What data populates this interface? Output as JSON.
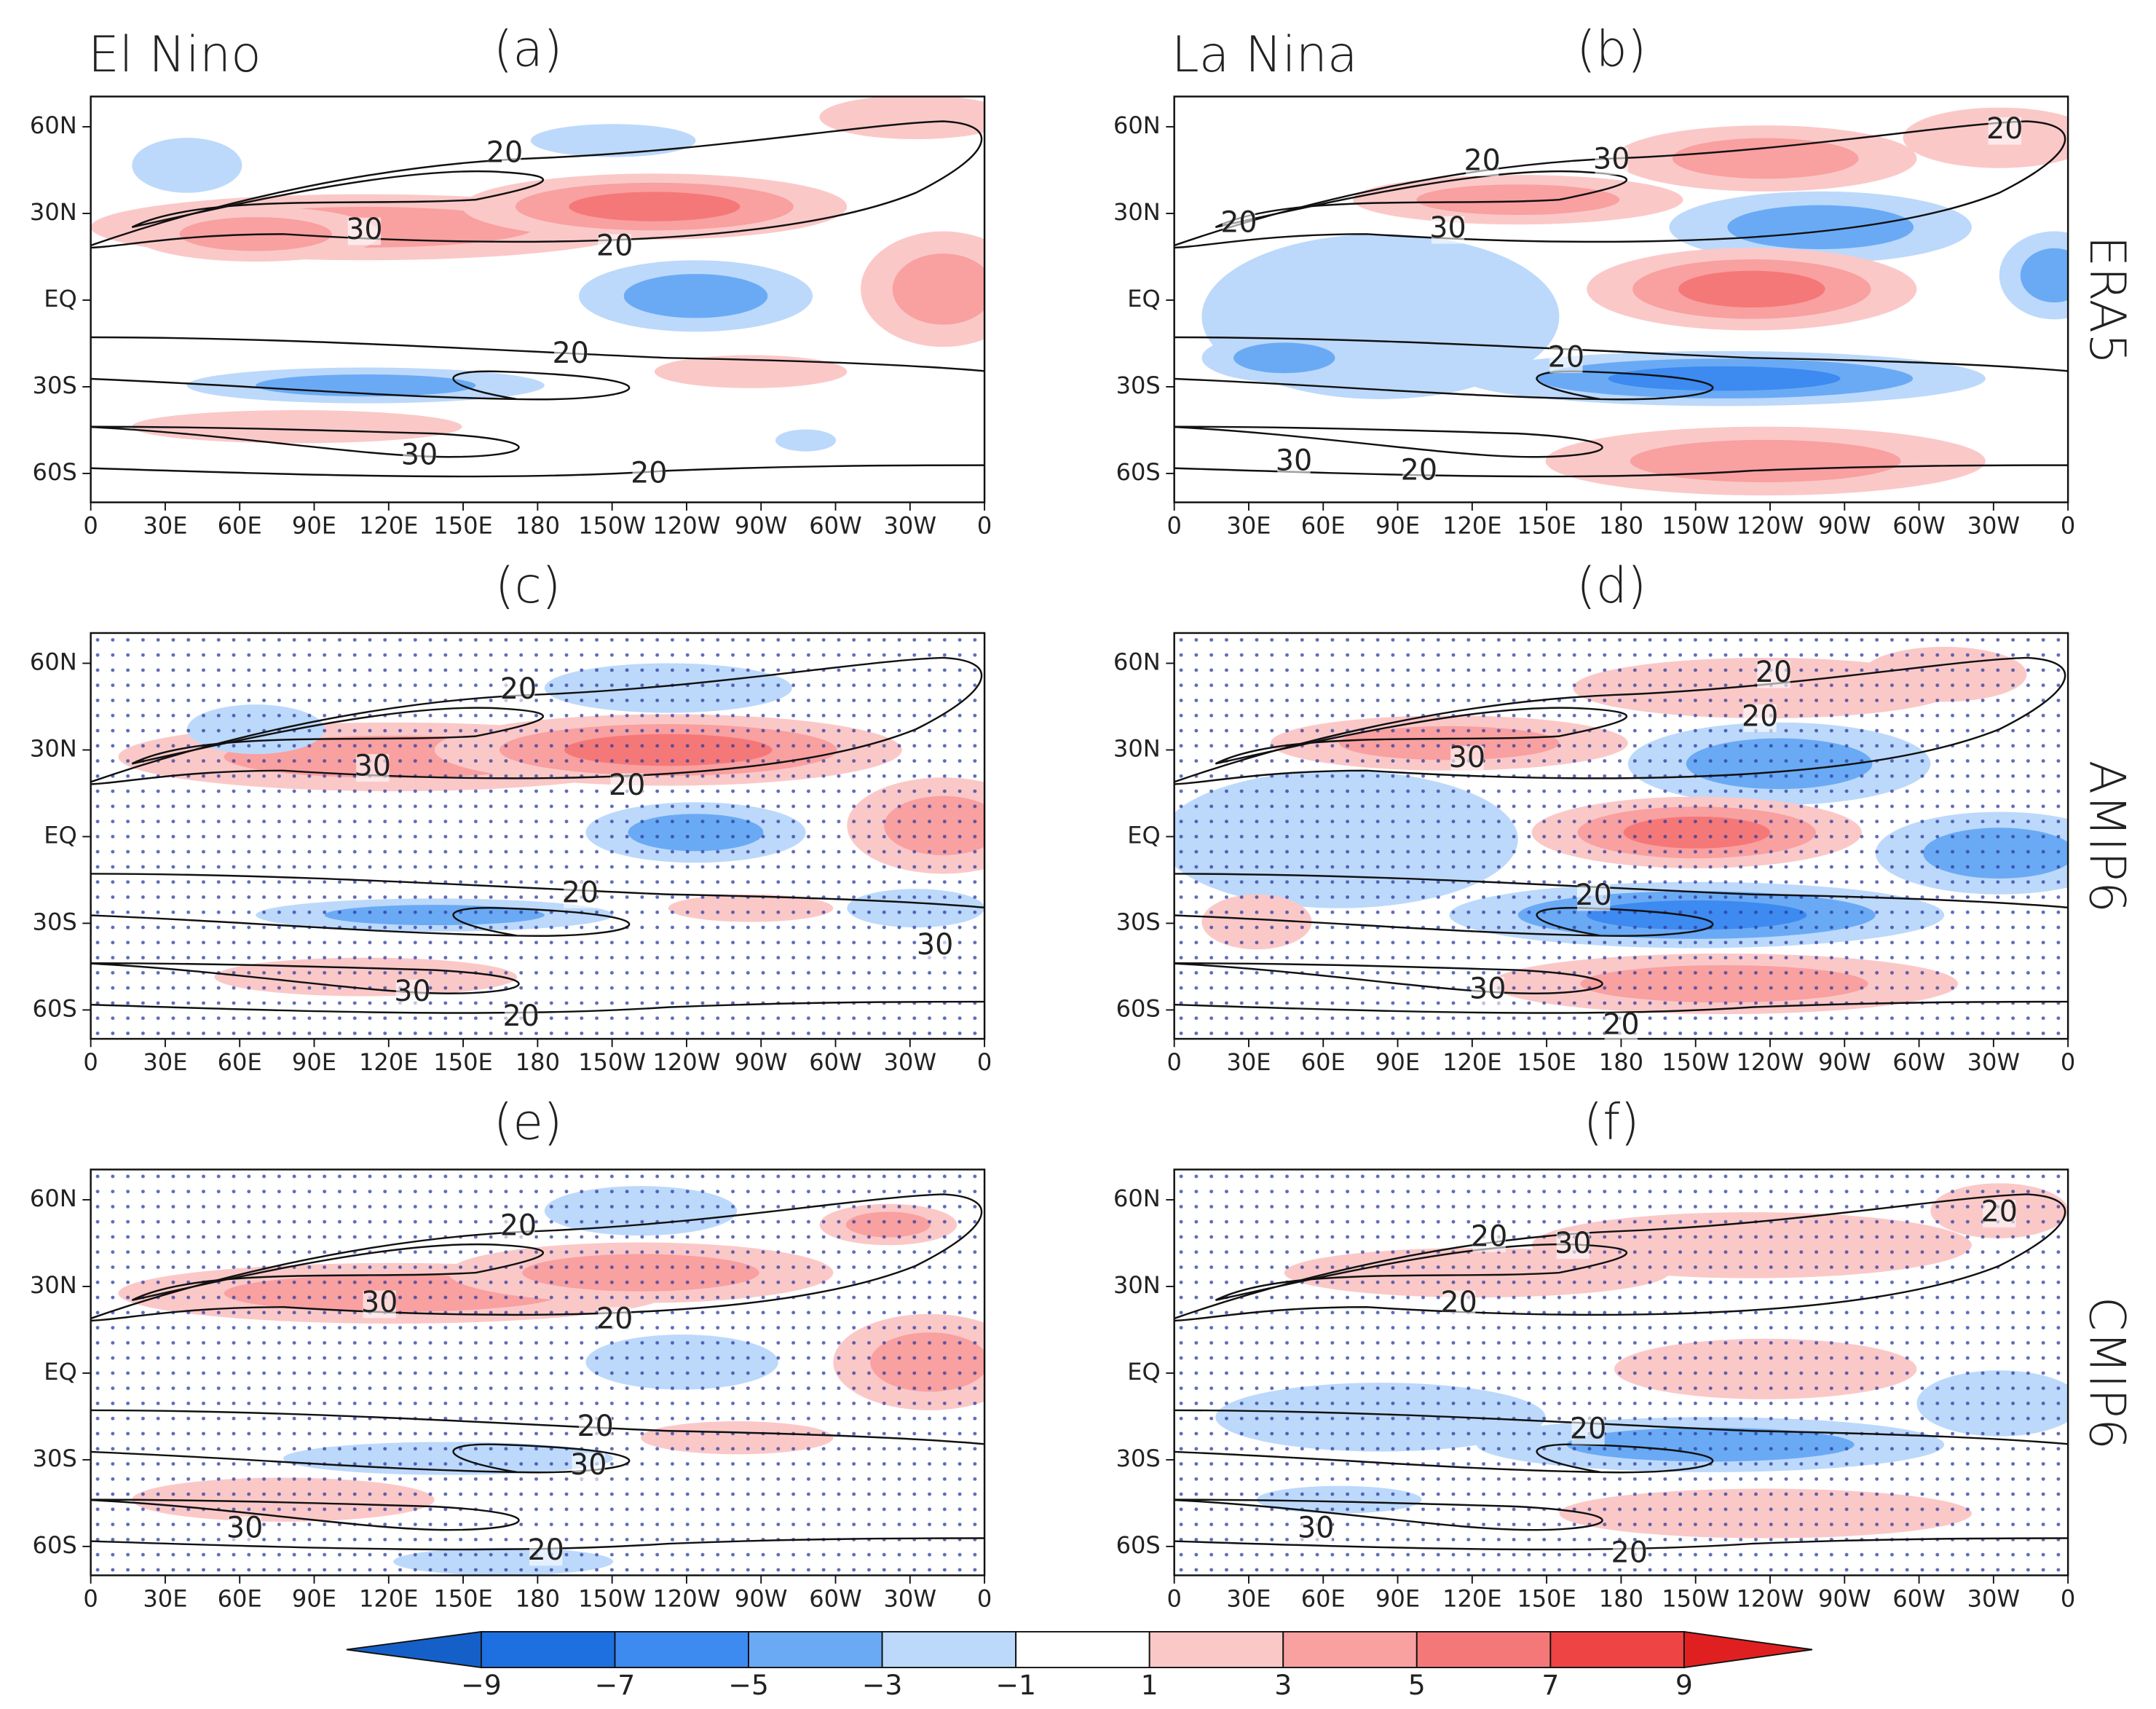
{
  "columns": [
    "El Nino",
    "La Nina"
  ],
  "rows": [
    "ERA5",
    "AMIP6",
    "CMIP6"
  ],
  "panels": [
    {
      "label": "(a)",
      "contour_labels": [
        "20",
        "30",
        "20",
        "20",
        "30",
        "20"
      ]
    },
    {
      "label": "(b)",
      "contour_labels": [
        "20",
        "30",
        "20",
        "30",
        "20",
        "20",
        "30",
        "20"
      ]
    },
    {
      "label": "(c)",
      "contour_labels": [
        "20",
        "30",
        "20",
        "20",
        "30",
        "30",
        "20"
      ]
    },
    {
      "label": "(d)",
      "contour_labels": [
        "20",
        "20",
        "30",
        "20",
        "30",
        "20"
      ]
    },
    {
      "label": "(e)",
      "contour_labels": [
        "20",
        "30",
        "20",
        "20",
        "30",
        "30",
        "20"
      ]
    },
    {
      "label": "(f)",
      "contour_labels": [
        "20",
        "30",
        "20",
        "20",
        "20",
        "30",
        "20"
      ]
    }
  ],
  "lat_ticks": [
    "60N",
    "30N",
    "EQ",
    "30S",
    "60S"
  ],
  "lon_ticks": [
    "0",
    "30E",
    "60E",
    "90E",
    "120E",
    "150E",
    "180",
    "150W",
    "120W",
    "90W",
    "60W",
    "30W",
    "0"
  ],
  "colorbar": [
    "−9",
    "−7",
    "−5",
    "−3",
    "−1",
    "1",
    "3",
    "5",
    "7",
    "9"
  ]
}
